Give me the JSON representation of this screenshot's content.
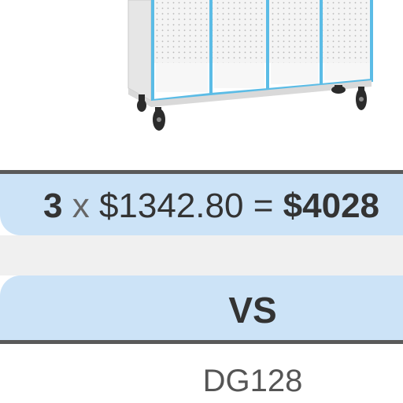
{
  "product_image": {
    "subject": "white mobile storage cabinet with blue-trimmed open cubbies and casters"
  },
  "price_band": {
    "quantity": "3",
    "times": "x",
    "unit_price": "$1342.80",
    "equals": "=",
    "total": "$4028"
  },
  "comparison": {
    "vs_label": "VS"
  },
  "next_item": {
    "code": "DG128"
  },
  "colors": {
    "band": "#cce3f7",
    "divider": "#5a5a5a",
    "gap": "#f0f0f0",
    "text": "#333333",
    "cabinet_trim": "#5bbce6"
  }
}
